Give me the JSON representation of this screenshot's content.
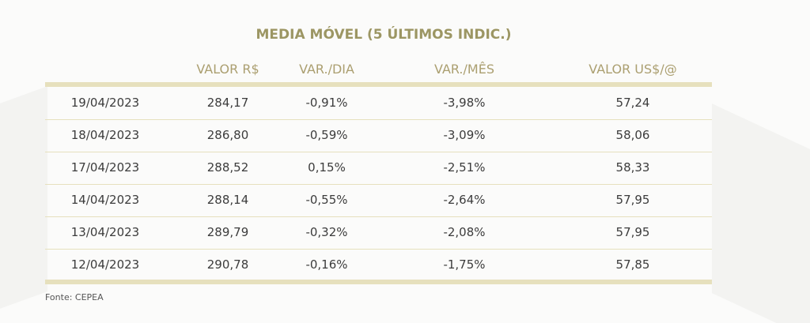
{
  "table": {
    "title": "MEDIA MÓVEL (5 ÚLTIMOS INDIC.)",
    "headers": [
      "",
      "VALOR R$",
      "VAR./DIA",
      "VAR./MÊS",
      "VALOR US$/@"
    ],
    "rows": [
      [
        "19/04/2023",
        "284,17",
        "-0,91%",
        "-3,98%",
        "57,24"
      ],
      [
        "18/04/2023",
        "286,80",
        "-0,59%",
        "-3,09%",
        "58,06"
      ],
      [
        "17/04/2023",
        "288,52",
        "0,15%",
        "-2,51%",
        "58,33"
      ],
      [
        "14/04/2023",
        "288,14",
        "-0,55%",
        "-2,64%",
        "57,95"
      ],
      [
        "13/04/2023",
        "289,79",
        "-0,32%",
        "-2,08%",
        "57,95"
      ],
      [
        "12/04/2023",
        "290,78",
        "-0,16%",
        "-1,75%",
        "57,85"
      ]
    ],
    "source": "Fonte: CEPEA"
  }
}
